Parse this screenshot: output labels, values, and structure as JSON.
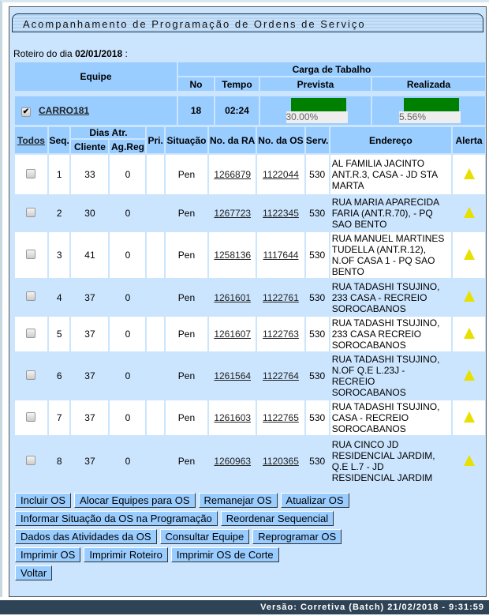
{
  "title": "Acompanhamento de Programação de Ordens de Serviço",
  "roteiro": {
    "label": "Roteiro do dia",
    "date": "02/01/2018",
    "suffix": " :"
  },
  "header": {
    "equipe": "Equipe",
    "carga": "Carga de Tabalho",
    "no": "No",
    "tempo": "Tempo",
    "prevista": "Prevista",
    "realizada": "Realizada"
  },
  "team": {
    "checked": true,
    "name": "CARRO181",
    "no": "18",
    "tempo": "02:24",
    "prevista": "30.00%",
    "realizada": "5.56%",
    "prevista_value": 30.0,
    "realizada_value": 5.56,
    "bar_color": "#008000"
  },
  "columns": {
    "todos": "Todos",
    "seq": "Seq.",
    "dias": "Dias Atr.",
    "cliente": "Cliente",
    "agreg": "Ag.Reg",
    "pri": "Pri.",
    "situacao": "Situação",
    "ra": "No. da RA",
    "os": "No. da OS",
    "serv": "Serv.",
    "endereco": "Endereço",
    "alerta": "Alerta"
  },
  "rows": [
    {
      "seq": "1",
      "cliente": "33",
      "agreg": "0",
      "pri": "",
      "situacao": "Pen",
      "ra": "1266879",
      "os": "1122044",
      "serv": "530",
      "endereco": "AL FAMILIA JACINTO ANT.R.3, CASA - JD STA MARTA",
      "alert": "warning-icon"
    },
    {
      "seq": "2",
      "cliente": "30",
      "agreg": "0",
      "pri": "",
      "situacao": "Pen",
      "ra": "1267723",
      "os": "1122345",
      "serv": "530",
      "endereco": "RUA MARIA APARECIDA FARIA (ANT.R.70), - PQ SAO BENTO",
      "alert": "warning-icon"
    },
    {
      "seq": "3",
      "cliente": "41",
      "agreg": "0",
      "pri": "",
      "situacao": "Pen",
      "ra": "1258136",
      "os": "1117644",
      "serv": "530",
      "endereco": "RUA MANUEL MARTINES TUDELLA (ANT.R.12), N.OF CASA 1 - PQ SAO BENTO",
      "alert": "warning-icon"
    },
    {
      "seq": "4",
      "cliente": "37",
      "agreg": "0",
      "pri": "",
      "situacao": "Pen",
      "ra": "1261601",
      "os": "1122761",
      "serv": "530",
      "endereco": "RUA TADASHI TSUJINO, 233 CASA - RECREIO SOROCABANOS",
      "alert": "warning-icon"
    },
    {
      "seq": "5",
      "cliente": "37",
      "agreg": "0",
      "pri": "",
      "situacao": "Pen",
      "ra": "1261607",
      "os": "1122763",
      "serv": "530",
      "endereco": "RUA TADASHI TSUJINO, 233 CASA RECREIO SOROCABANOS",
      "alert": "warning-icon"
    },
    {
      "seq": "6",
      "cliente": "37",
      "agreg": "0",
      "pri": "",
      "situacao": "Pen",
      "ra": "1261564",
      "os": "1122764",
      "serv": "530",
      "endereco": "RUA TADASHI TSUJINO, N.OF Q.E L.23J - RECREIO SOROCABANOS",
      "alert": "warning-icon"
    },
    {
      "seq": "7",
      "cliente": "37",
      "agreg": "0",
      "pri": "",
      "situacao": "Pen",
      "ra": "1261603",
      "os": "1122765",
      "serv": "530",
      "endereco": "RUA TADASHI TSUJINO, CASA - RECREIO SOROCABANOS",
      "alert": "warning-icon"
    },
    {
      "seq": "8",
      "cliente": "37",
      "agreg": "0",
      "pri": "",
      "situacao": "Pen",
      "ra": "1260963",
      "os": "1120365",
      "serv": "530",
      "endereco": "RUA CINCO JD RESIDENCIAL JARDIM, Q.E L.7 - JD RESIDENCIAL JARDIM",
      "alert": "warning-icon"
    }
  ],
  "buttons": [
    [
      "Incluir OS",
      "Alocar Equipes para OS",
      "Remanejar OS",
      "Atualizar OS"
    ],
    [
      "Informar Situação da OS na Programação",
      "Reordenar Sequencial"
    ],
    [
      "Dados das Atividades da OS",
      "Consultar Equipe",
      "Reprogramar OS"
    ],
    [
      "Imprimir OS",
      "Imprimir Roteiro",
      "Imprimir OS de Corte"
    ],
    [
      "Voltar"
    ]
  ],
  "footer": "Versão: Corretiva (Batch) 21/02/2018 - 9:31:59"
}
